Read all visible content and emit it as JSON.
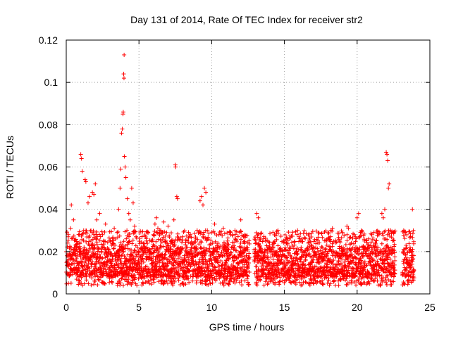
{
  "chart_data": {
    "type": "scatter",
    "title": "Day 131 of 2014, Rate Of TEC Index for receiver str2",
    "xlabel": "GPS time / hours",
    "ylabel": "ROTI / TECUs",
    "xlim": [
      0,
      25
    ],
    "ylim": [
      0,
      0.12
    ],
    "xticks": [
      0,
      5,
      10,
      15,
      20,
      25
    ],
    "xtick_labels": [
      "0",
      "5",
      "10",
      "15",
      "20",
      "25"
    ],
    "yticks": [
      0,
      0.02,
      0.04,
      0.06,
      0.08,
      0.1,
      0.12
    ],
    "ytick_labels": [
      "0",
      "0.02",
      "0.04",
      "0.06",
      "0.08",
      "0.1",
      "0.12"
    ],
    "grid": true,
    "marker": "+",
    "color": "#ff0000",
    "series": [
      {
        "name": "ROTI",
        "points": [
          [
            0.1,
            0.024
          ],
          [
            0.2,
            0.014
          ],
          [
            0.3,
            0.031
          ],
          [
            0.35,
            0.042
          ],
          [
            0.4,
            0.018
          ],
          [
            0.5,
            0.035
          ],
          [
            0.6,
            0.012
          ],
          [
            0.7,
            0.022
          ],
          [
            0.8,
            0.009
          ],
          [
            0.9,
            0.028
          ],
          [
            1.0,
            0.066
          ],
          [
            1.05,
            0.064
          ],
          [
            1.1,
            0.058
          ],
          [
            1.2,
            0.03
          ],
          [
            1.3,
            0.054
          ],
          [
            1.35,
            0.053
          ],
          [
            1.4,
            0.019
          ],
          [
            1.5,
            0.043
          ],
          [
            1.6,
            0.046
          ],
          [
            1.7,
            0.025
          ],
          [
            1.8,
            0.048
          ],
          [
            1.9,
            0.047
          ],
          [
            2.0,
            0.052
          ],
          [
            2.1,
            0.035
          ],
          [
            2.2,
            0.015
          ],
          [
            2.3,
            0.038
          ],
          [
            2.5,
            0.028
          ],
          [
            2.7,
            0.033
          ],
          [
            2.9,
            0.021
          ],
          [
            3.0,
            0.016
          ],
          [
            3.2,
            0.024
          ],
          [
            3.3,
            0.031
          ],
          [
            3.4,
            0.019
          ],
          [
            3.5,
            0.029
          ],
          [
            3.6,
            0.04
          ],
          [
            3.7,
            0.05
          ],
          [
            3.75,
            0.059
          ],
          [
            3.8,
            0.076
          ],
          [
            3.85,
            0.078
          ],
          [
            3.9,
            0.085
          ],
          [
            3.92,
            0.086
          ],
          [
            3.95,
            0.104
          ],
          [
            3.97,
            0.102
          ],
          [
            3.98,
            0.113
          ],
          [
            4.0,
            0.065
          ],
          [
            4.05,
            0.06
          ],
          [
            4.1,
            0.055
          ],
          [
            4.2,
            0.045
          ],
          [
            4.3,
            0.038
          ],
          [
            4.4,
            0.035
          ],
          [
            4.5,
            0.05
          ],
          [
            4.6,
            0.043
          ],
          [
            4.7,
            0.032
          ],
          [
            4.8,
            0.027
          ],
          [
            4.9,
            0.022
          ],
          [
            5.0,
            0.02
          ],
          [
            5.2,
            0.018
          ],
          [
            5.5,
            0.025
          ],
          [
            5.7,
            0.021
          ],
          [
            6.0,
            0.028
          ],
          [
            6.1,
            0.033
          ],
          [
            6.2,
            0.036
          ],
          [
            6.3,
            0.031
          ],
          [
            6.5,
            0.03
          ],
          [
            6.7,
            0.034
          ],
          [
            6.9,
            0.029
          ],
          [
            7.0,
            0.032
          ],
          [
            7.2,
            0.025
          ],
          [
            7.4,
            0.035
          ],
          [
            7.5,
            0.061
          ],
          [
            7.52,
            0.06
          ],
          [
            7.6,
            0.046
          ],
          [
            7.65,
            0.045
          ],
          [
            7.7,
            0.022
          ],
          [
            7.8,
            0.02
          ],
          [
            8.0,
            0.027
          ],
          [
            8.3,
            0.018
          ],
          [
            8.6,
            0.022
          ],
          [
            8.9,
            0.026
          ],
          [
            9.0,
            0.03
          ],
          [
            9.2,
            0.044
          ],
          [
            9.3,
            0.046
          ],
          [
            9.4,
            0.042
          ],
          [
            9.5,
            0.05
          ],
          [
            9.6,
            0.048
          ],
          [
            9.7,
            0.03
          ],
          [
            9.9,
            0.018
          ],
          [
            10.2,
            0.033
          ],
          [
            10.5,
            0.028
          ],
          [
            10.8,
            0.031
          ],
          [
            11.0,
            0.019
          ],
          [
            11.3,
            0.028
          ],
          [
            11.6,
            0.03
          ],
          [
            12.0,
            0.035
          ],
          [
            12.2,
            0.027
          ],
          [
            12.4,
            0.022
          ],
          [
            12.5,
            0.012
          ],
          [
            13.1,
            0.038
          ],
          [
            13.2,
            0.036
          ],
          [
            13.4,
            0.02
          ],
          [
            13.7,
            0.025
          ],
          [
            14.0,
            0.022
          ],
          [
            14.3,
            0.024
          ],
          [
            14.6,
            0.016
          ],
          [
            15.0,
            0.021
          ],
          [
            15.3,
            0.019
          ],
          [
            15.6,
            0.014
          ],
          [
            15.9,
            0.03
          ],
          [
            16.0,
            0.027
          ],
          [
            16.3,
            0.018
          ],
          [
            16.6,
            0.022
          ],
          [
            17.0,
            0.02
          ],
          [
            17.3,
            0.024
          ],
          [
            17.6,
            0.022
          ],
          [
            17.8,
            0.021
          ],
          [
            18.0,
            0.026
          ],
          [
            18.2,
            0.03
          ],
          [
            18.3,
            0.031
          ],
          [
            18.6,
            0.019
          ],
          [
            19.0,
            0.02
          ],
          [
            19.3,
            0.032
          ],
          [
            19.4,
            0.031
          ],
          [
            19.6,
            0.024
          ],
          [
            19.8,
            0.028
          ],
          [
            20.0,
            0.036
          ],
          [
            20.1,
            0.038
          ],
          [
            20.3,
            0.03
          ],
          [
            20.5,
            0.025
          ],
          [
            20.8,
            0.026
          ],
          [
            21.0,
            0.02
          ],
          [
            21.2,
            0.022
          ],
          [
            21.5,
            0.028
          ],
          [
            21.7,
            0.038
          ],
          [
            21.8,
            0.036
          ],
          [
            21.9,
            0.04
          ],
          [
            22.0,
            0.067
          ],
          [
            22.05,
            0.066
          ],
          [
            22.1,
            0.063
          ],
          [
            22.15,
            0.05
          ],
          [
            22.2,
            0.052
          ],
          [
            22.3,
            0.03
          ],
          [
            22.4,
            0.015
          ],
          [
            23.2,
            0.03
          ],
          [
            23.3,
            0.029
          ],
          [
            23.4,
            0.022
          ],
          [
            23.6,
            0.02
          ],
          [
            23.7,
            0.015
          ],
          [
            23.8,
            0.04
          ]
        ],
        "dense_band": {
          "ranges": [
            [
              0.0,
              12.6
            ],
            [
              12.9,
              22.6
            ],
            [
              23.1,
              23.9
            ]
          ],
          "typical_low": 0.008,
          "typical_high": 0.022,
          "min": 0.003
        }
      }
    ]
  }
}
